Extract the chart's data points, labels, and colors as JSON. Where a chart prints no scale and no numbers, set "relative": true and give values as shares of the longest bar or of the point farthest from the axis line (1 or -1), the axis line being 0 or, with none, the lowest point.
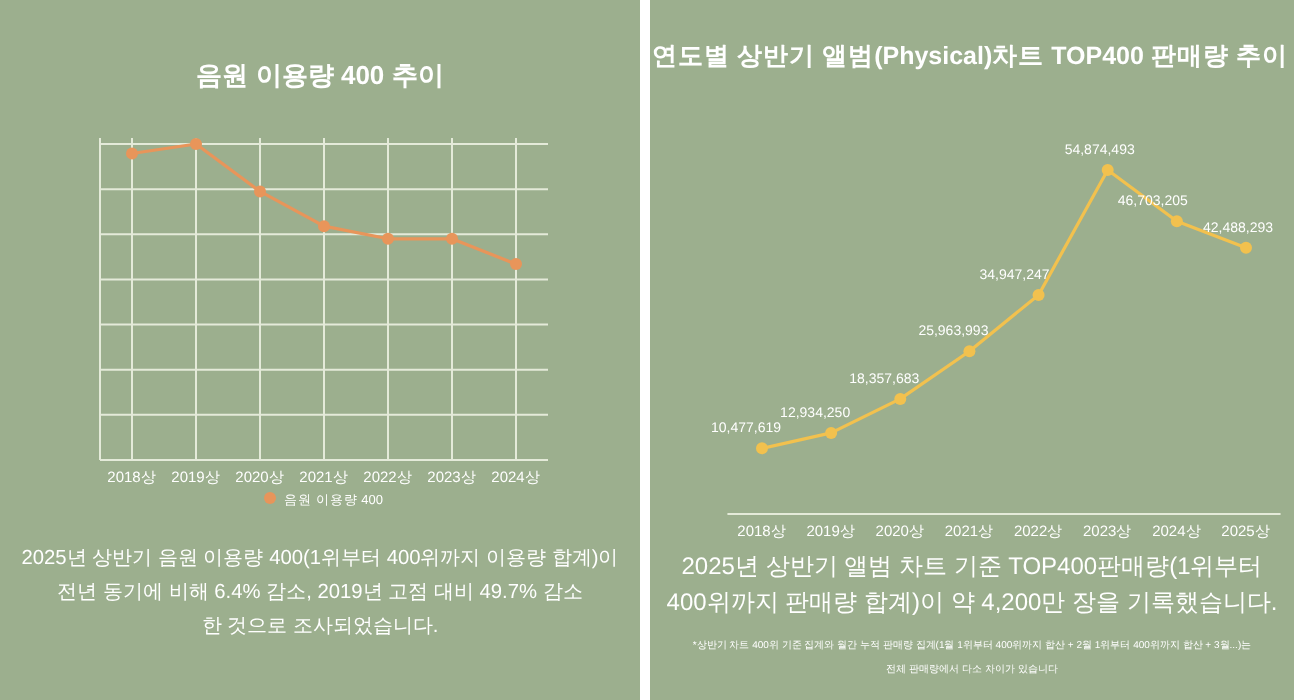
{
  "chart_data": [
    {
      "type": "line",
      "title": "음원 이용량 400 추이",
      "categories": [
        "2018상",
        "2019상",
        "2020상",
        "2021상",
        "2022상",
        "2023상",
        "2024상"
      ],
      "relative": true,
      "grid": true,
      "legend": "bottom",
      "marker": "circle",
      "line_style": "solid",
      "series": [
        {
          "name": "음원 이용량 400",
          "color": "#e8955a",
          "values": [
            0.97,
            1,
            0.85,
            0.74,
            0.7,
            0.7,
            0.62
          ]
        }
      ],
      "annotations": [
        "2025년 상반기 음원 이용량 400(1위부터 400위까지 이용량 합계)이\n전년 동기에 비해 6.4% 감소, 2019년 고점 대비 49.7% 감소\n한 것으로 조사되었습니다."
      ]
    },
    {
      "type": "line",
      "title": "연도별 상반기 앨범(Physical)차트 TOP400 판매량 추이",
      "categories": [
        "2018상",
        "2019상",
        "2020상",
        "2021상",
        "2022상",
        "2023상",
        "2024상",
        "2025상"
      ],
      "grid": false,
      "marker": "circle",
      "line_style": "solid",
      "series": [
        {
          "color": "#f2c14e",
          "values": [
            10477619,
            12934250,
            18357683,
            25963993,
            34947247,
            54874493,
            46703205,
            42488293
          ],
          "value_labels": [
            "10,477,619",
            "12,934,250",
            "18,357,683",
            "25,963,993",
            "34,947,247",
            "54,874,493",
            "46,703,205",
            "42,488,293"
          ]
        }
      ],
      "annotations": [
        "2025년 상반기 앨범 차트 기준 TOP400판매량(1위부터\n400위까지 판매량 합계)이 약 4,200만 장을 기록했습니다.",
        "*상반기 차트 400위 기준 집계와 월간 누적 판매량 집계(1월 1위부터 400위까지 합산 + 2월 1위부터 400위까지 합산 + 3월...)는\n전체 판매량에서 다소 차이가 있습니다"
      ]
    }
  ]
}
